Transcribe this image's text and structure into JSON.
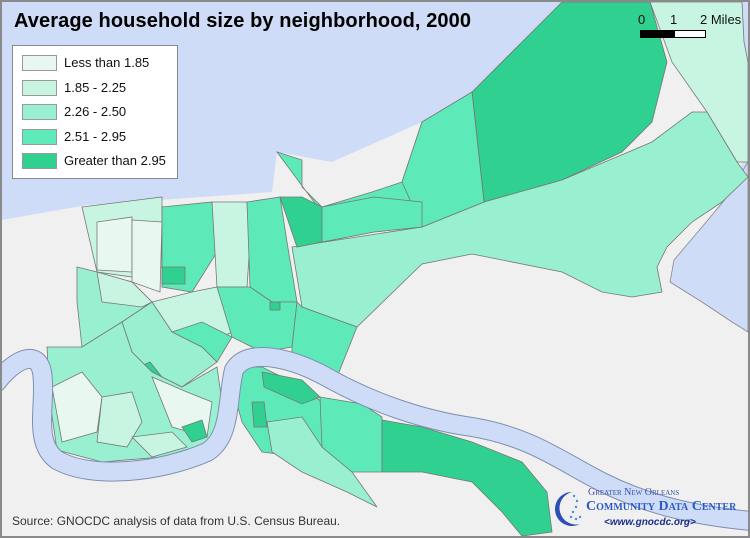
{
  "title": "Average household size by neighborhood, 2000",
  "legend": [
    {
      "label": "Less than 1.85",
      "color": "#e8f8f0"
    },
    {
      "label": "1.85 - 2.25",
      "color": "#c8f5e2"
    },
    {
      "label": "2.26 - 2.50",
      "color": "#98f0d0"
    },
    {
      "label": "2.51 - 2.95",
      "color": "#5eeab8"
    },
    {
      "label": "Greater than 2.95",
      "color": "#30d090"
    }
  ],
  "scale": {
    "t0": "0",
    "t1": "1",
    "t2": "2 Miles"
  },
  "source": "Source: GNOCDC analysis of data from U.S. Census Bureau.",
  "logo": {
    "line1": "Greater New Orleans",
    "line2": "Community Data Center",
    "line3": "<www.gnocdc.org>"
  },
  "colors": {
    "water": "#cfdcf7",
    "land": "#f0f0f0"
  }
}
